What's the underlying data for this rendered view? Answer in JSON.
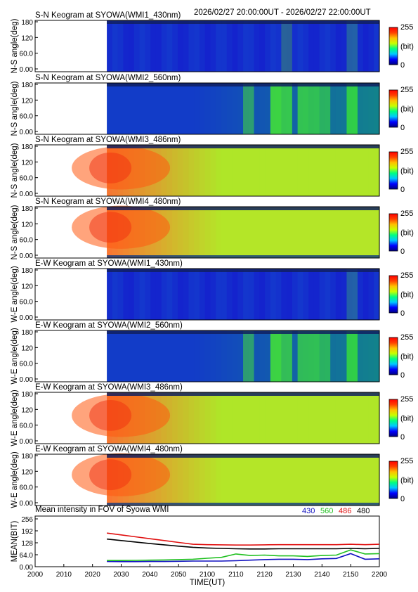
{
  "header": {
    "time_range": "2026/02/27 20:00:00UT - 2026/02/27 22:00:00UT"
  },
  "colorbar": {
    "max_label": "255",
    "unit_label": "(bit)",
    "min_label": "0",
    "colors": [
      "#000080",
      "#0000ff",
      "#00c8ff",
      "#00ff80",
      "#c8ff00",
      "#ffc000",
      "#ff4000",
      "#ff0000"
    ]
  },
  "keogram_common": {
    "y_ticks": [
      "180",
      "120",
      "60.0",
      "0.00"
    ],
    "data_start_minute": 25,
    "x_range_minutes": [
      0,
      120
    ]
  },
  "panels": [
    {
      "title": "S-N Keogram at SYOWA(WMI1_430nm)",
      "ylabel": "N-S angle(deg)",
      "style": "blue",
      "base": [
        20,
        45,
        205
      ],
      "bands": [
        [
          88,
          0.35
        ],
        [
          112,
          0.25
        ],
        [
          148,
          0.7
        ],
        [
          154,
          0.45
        ]
      ]
    },
    {
      "title": "S-N Keogram at SYOWA(WMI2_560nm)",
      "ylabel": "N-S angle(deg)",
      "style": "green",
      "base": [
        18,
        60,
        200
      ],
      "bands": [
        [
          75,
          0.45
        ],
        [
          84,
          0.7
        ],
        [
          88,
          0.6
        ],
        [
          93,
          0.55
        ],
        [
          97,
          0.5
        ],
        [
          101,
          0.4
        ],
        [
          112,
          0.5
        ],
        [
          148,
          0.8
        ],
        [
          154,
          0.5
        ]
      ]
    },
    {
      "title": "S-N Keogram at SYOWA(WMI3_486nm)",
      "ylabel": "N-S angle(deg)",
      "style": "warm",
      "base": [
        175,
        230,
        40
      ],
      "bands": []
    },
    {
      "title": "S-N Keogram at SYOWA(WMI4_480nm)",
      "ylabel": "N-S angle(deg)",
      "style": "warm2",
      "base": [
        180,
        230,
        40
      ],
      "bands": []
    },
    {
      "title": "E-W Keogram at SYOWA(WMI1_430nm)",
      "ylabel": "W-E angle(deg)",
      "style": "blue",
      "base": [
        20,
        45,
        205
      ],
      "bands": [
        [
          112,
          0.25
        ],
        [
          148,
          0.7
        ],
        [
          154,
          0.35
        ]
      ]
    },
    {
      "title": "E-W Keogram at SYOWA(WMI2_560nm)",
      "ylabel": "W-E angle(deg)",
      "style": "green",
      "base": [
        18,
        60,
        200
      ],
      "bands": [
        [
          75,
          0.45
        ],
        [
          84,
          0.7
        ],
        [
          88,
          0.55
        ],
        [
          93,
          0.5
        ],
        [
          97,
          0.5
        ],
        [
          101,
          0.4
        ],
        [
          112,
          0.5
        ],
        [
          148,
          0.8
        ],
        [
          154,
          0.5
        ]
      ]
    },
    {
      "title": "E-W Keogram at SYOWA(WMI3_486nm)",
      "ylabel": "W-E angle(deg)",
      "style": "warm",
      "base": [
        175,
        230,
        40
      ],
      "bands": []
    },
    {
      "title": "E-W Keogram at SYOWA(WMI4_480nm)",
      "ylabel": "W-E angle(deg)",
      "style": "warm2",
      "base": [
        180,
        230,
        40
      ],
      "bands": []
    }
  ],
  "chart_data": {
    "type": "line",
    "title": "Mean intensity in FOV of Syowa WMI",
    "xlabel": "TIME(UT)",
    "ylabel": "MEAN(BIT)",
    "x_tick_labels": [
      "2000",
      "2010",
      "2020",
      "2030",
      "2040",
      "2050",
      "2100",
      "2110",
      "2120",
      "2130",
      "2140",
      "2150",
      "2200"
    ],
    "y_tick_labels": [
      "256",
      "192",
      "128",
      "64.0",
      "0.00"
    ],
    "y_ticks": [
      256,
      192,
      128,
      64,
      0
    ],
    "xlim": [
      0,
      120
    ],
    "ylim": [
      0,
      256
    ],
    "x_minutes": [
      25,
      30,
      35,
      40,
      45,
      50,
      55,
      60,
      65,
      70,
      75,
      80,
      85,
      90,
      95,
      100,
      105,
      110,
      115,
      120
    ],
    "series": [
      {
        "name": "430",
        "color": "#1010c0",
        "values": [
          28,
          27,
          27,
          28,
          28,
          29,
          30,
          30,
          30,
          32,
          35,
          38,
          40,
          40,
          38,
          42,
          44,
          70,
          40,
          42
        ]
      },
      {
        "name": "560",
        "color": "#20c020",
        "values": [
          33,
          33,
          34,
          35,
          36,
          38,
          40,
          45,
          50,
          68,
          60,
          62,
          58,
          58,
          55,
          60,
          62,
          90,
          68,
          70
        ]
      },
      {
        "name": "486",
        "color": "#e01010",
        "values": [
          180,
          170,
          160,
          150,
          140,
          130,
          120,
          118,
          117,
          116,
          116,
          117,
          118,
          118,
          118,
          118,
          118,
          120,
          118,
          120
        ]
      },
      {
        "name": "480",
        "color": "#000000",
        "values": [
          148,
          140,
          132,
          124,
          117,
          110,
          104,
          100,
          98,
          96,
          95,
          95,
          96,
          96,
          96,
          96,
          96,
          98,
          96,
          98
        ]
      }
    ]
  }
}
